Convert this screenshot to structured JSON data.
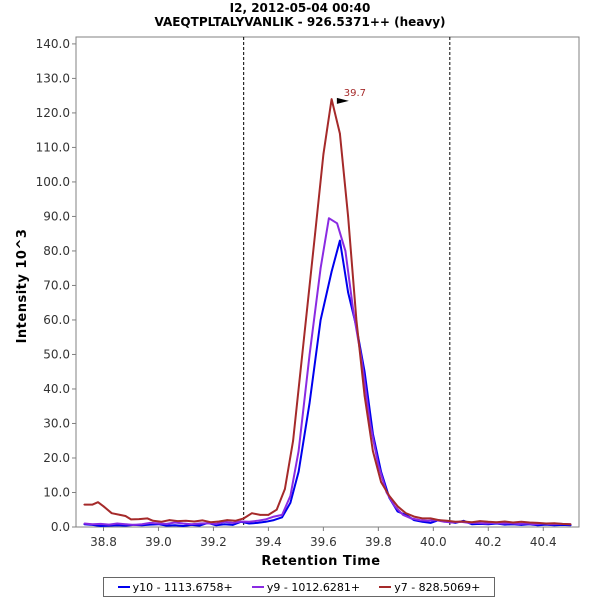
{
  "chart_data": {
    "type": "line",
    "title": "I2, 2012-05-04 00:40",
    "subtitle": "VAEQTPLTALYVANLIK - 926.5371++ (heavy)",
    "xlabel": "Retention Time",
    "ylabel": "Intensity 10^3",
    "xlim": [
      38.7,
      40.53
    ],
    "ylim": [
      0,
      142
    ],
    "xticks": [
      "38.8",
      "39.0",
      "39.2",
      "39.4",
      "39.6",
      "39.8",
      "40.0",
      "40.2",
      "40.4"
    ],
    "yticks": [
      "0.0",
      "10.0",
      "20.0",
      "30.0",
      "40.0",
      "50.0",
      "60.0",
      "70.0",
      "80.0",
      "90.0",
      "100.0",
      "110.0",
      "120.0",
      "130.0",
      "140.0"
    ],
    "vlines": [
      39.31,
      40.06
    ],
    "peak_annotation": {
      "x": 39.7,
      "y": 123.5,
      "label": "39.7"
    },
    "series": [
      {
        "name": "y10 - 1113.6758+",
        "color": "#0000ee",
        "points": [
          [
            38.73,
            0.8
          ],
          [
            38.76,
            0.6
          ],
          [
            38.79,
            0.3
          ],
          [
            38.82,
            0.4
          ],
          [
            38.85,
            0.5
          ],
          [
            38.88,
            0.4
          ],
          [
            38.91,
            0.6
          ],
          [
            38.94,
            0.5
          ],
          [
            38.97,
            0.7
          ],
          [
            39.0,
            0.8
          ],
          [
            39.03,
            0.4
          ],
          [
            39.06,
            0.5
          ],
          [
            39.09,
            0.3
          ],
          [
            39.12,
            0.6
          ],
          [
            39.15,
            0.4
          ],
          [
            39.18,
            1.2
          ],
          [
            39.21,
            0.5
          ],
          [
            39.24,
            0.8
          ],
          [
            39.27,
            0.6
          ],
          [
            39.3,
            1.5
          ],
          [
            39.33,
            1.0
          ],
          [
            39.36,
            1.2
          ],
          [
            39.39,
            1.5
          ],
          [
            39.42,
            2.0
          ],
          [
            39.45,
            2.8
          ],
          [
            39.48,
            7.0
          ],
          [
            39.51,
            16.0
          ],
          [
            39.55,
            36.0
          ],
          [
            39.59,
            60.0
          ],
          [
            39.63,
            74.0
          ],
          [
            39.66,
            83.0
          ],
          [
            39.69,
            68.0
          ],
          [
            39.72,
            58.0
          ],
          [
            39.75,
            45.0
          ],
          [
            39.78,
            27.0
          ],
          [
            39.81,
            16.0
          ],
          [
            39.84,
            8.5
          ],
          [
            39.87,
            4.5
          ],
          [
            39.9,
            3.5
          ],
          [
            39.93,
            2.0
          ],
          [
            39.96,
            1.5
          ],
          [
            39.99,
            1.2
          ],
          [
            40.02,
            2.0
          ],
          [
            40.05,
            1.5
          ],
          [
            40.08,
            1.2
          ],
          [
            40.11,
            1.8
          ],
          [
            40.14,
            0.8
          ],
          [
            40.17,
            0.9
          ],
          [
            40.2,
            0.8
          ],
          [
            40.23,
            1.0
          ],
          [
            40.26,
            0.7
          ],
          [
            40.29,
            0.8
          ],
          [
            40.32,
            0.6
          ],
          [
            40.35,
            0.8
          ],
          [
            40.38,
            0.5
          ],
          [
            40.41,
            0.7
          ],
          [
            40.44,
            0.5
          ],
          [
            40.47,
            0.6
          ],
          [
            40.5,
            0.5
          ]
        ]
      },
      {
        "name": "y9 - 1012.6281+",
        "color": "#8a2be2",
        "points": [
          [
            38.73,
            1.0
          ],
          [
            38.76,
            0.8
          ],
          [
            38.79,
            0.9
          ],
          [
            38.82,
            0.7
          ],
          [
            38.85,
            1.0
          ],
          [
            38.88,
            0.8
          ],
          [
            38.91,
            0.6
          ],
          [
            38.94,
            0.8
          ],
          [
            38.97,
            1.2
          ],
          [
            39.0,
            1.0
          ],
          [
            39.03,
            0.9
          ],
          [
            39.06,
            1.3
          ],
          [
            39.09,
            1.0
          ],
          [
            39.12,
            0.8
          ],
          [
            39.15,
            1.0
          ],
          [
            39.18,
            1.1
          ],
          [
            39.21,
            0.9
          ],
          [
            39.24,
            1.5
          ],
          [
            39.27,
            1.2
          ],
          [
            39.3,
            1.6
          ],
          [
            39.33,
            1.5
          ],
          [
            39.36,
            1.8
          ],
          [
            39.39,
            2.2
          ],
          [
            39.42,
            3.0
          ],
          [
            39.45,
            3.5
          ],
          [
            39.48,
            9.0
          ],
          [
            39.51,
            22.0
          ],
          [
            39.55,
            50.0
          ],
          [
            39.59,
            75.0
          ],
          [
            39.62,
            89.5
          ],
          [
            39.65,
            88.0
          ],
          [
            39.68,
            80.0
          ],
          [
            39.71,
            62.0
          ],
          [
            39.74,
            48.0
          ],
          [
            39.77,
            30.0
          ],
          [
            39.8,
            18.0
          ],
          [
            39.83,
            10.0
          ],
          [
            39.86,
            6.0
          ],
          [
            39.89,
            3.5
          ],
          [
            39.92,
            2.5
          ],
          [
            39.95,
            2.0
          ],
          [
            39.98,
            1.8
          ],
          [
            40.01,
            2.0
          ],
          [
            40.04,
            1.5
          ],
          [
            40.07,
            1.3
          ],
          [
            40.1,
            1.5
          ],
          [
            40.13,
            1.2
          ],
          [
            40.16,
            1.2
          ],
          [
            40.19,
            1.0
          ],
          [
            40.22,
            1.2
          ],
          [
            40.25,
            1.0
          ],
          [
            40.28,
            1.1
          ],
          [
            40.31,
            0.9
          ],
          [
            40.34,
            1.0
          ],
          [
            40.37,
            0.8
          ],
          [
            40.4,
            1.0
          ],
          [
            40.43,
            0.8
          ],
          [
            40.46,
            0.9
          ],
          [
            40.5,
            0.8
          ]
        ]
      },
      {
        "name": "y7 - 828.5069+",
        "color": "#a52a2a",
        "points": [
          [
            38.73,
            6.5
          ],
          [
            38.76,
            6.5
          ],
          [
            38.78,
            7.2
          ],
          [
            38.8,
            6.0
          ],
          [
            38.83,
            4.0
          ],
          [
            38.86,
            3.5
          ],
          [
            38.88,
            3.2
          ],
          [
            38.9,
            2.2
          ],
          [
            38.93,
            2.3
          ],
          [
            38.96,
            2.5
          ],
          [
            38.98,
            1.8
          ],
          [
            39.01,
            1.5
          ],
          [
            39.04,
            2.0
          ],
          [
            39.07,
            1.7
          ],
          [
            39.1,
            1.8
          ],
          [
            39.13,
            1.6
          ],
          [
            39.16,
            1.9
          ],
          [
            39.19,
            1.4
          ],
          [
            39.22,
            1.6
          ],
          [
            39.25,
            2.0
          ],
          [
            39.28,
            1.8
          ],
          [
            39.31,
            2.5
          ],
          [
            39.34,
            4.0
          ],
          [
            39.37,
            3.5
          ],
          [
            39.4,
            3.5
          ],
          [
            39.43,
            5.0
          ],
          [
            39.46,
            11.0
          ],
          [
            39.49,
            25.0
          ],
          [
            39.53,
            55.0
          ],
          [
            39.57,
            85.0
          ],
          [
            39.6,
            108.0
          ],
          [
            39.63,
            124.0
          ],
          [
            39.66,
            114.0
          ],
          [
            39.69,
            90.0
          ],
          [
            39.72,
            60.0
          ],
          [
            39.75,
            38.0
          ],
          [
            39.78,
            22.0
          ],
          [
            39.81,
            13.0
          ],
          [
            39.84,
            9.0
          ],
          [
            39.87,
            6.0
          ],
          [
            39.9,
            4.0
          ],
          [
            39.93,
            3.0
          ],
          [
            39.96,
            2.5
          ],
          [
            39.99,
            2.5
          ],
          [
            40.02,
            2.0
          ],
          [
            40.05,
            1.8
          ],
          [
            40.08,
            1.5
          ],
          [
            40.11,
            1.6
          ],
          [
            40.14,
            1.4
          ],
          [
            40.17,
            1.7
          ],
          [
            40.2,
            1.5
          ],
          [
            40.23,
            1.4
          ],
          [
            40.26,
            1.6
          ],
          [
            40.29,
            1.3
          ],
          [
            40.32,
            1.5
          ],
          [
            40.35,
            1.3
          ],
          [
            40.38,
            1.2
          ],
          [
            40.41,
            1.0
          ],
          [
            40.44,
            1.1
          ],
          [
            40.47,
            0.9
          ],
          [
            40.5,
            0.8
          ]
        ]
      }
    ]
  }
}
